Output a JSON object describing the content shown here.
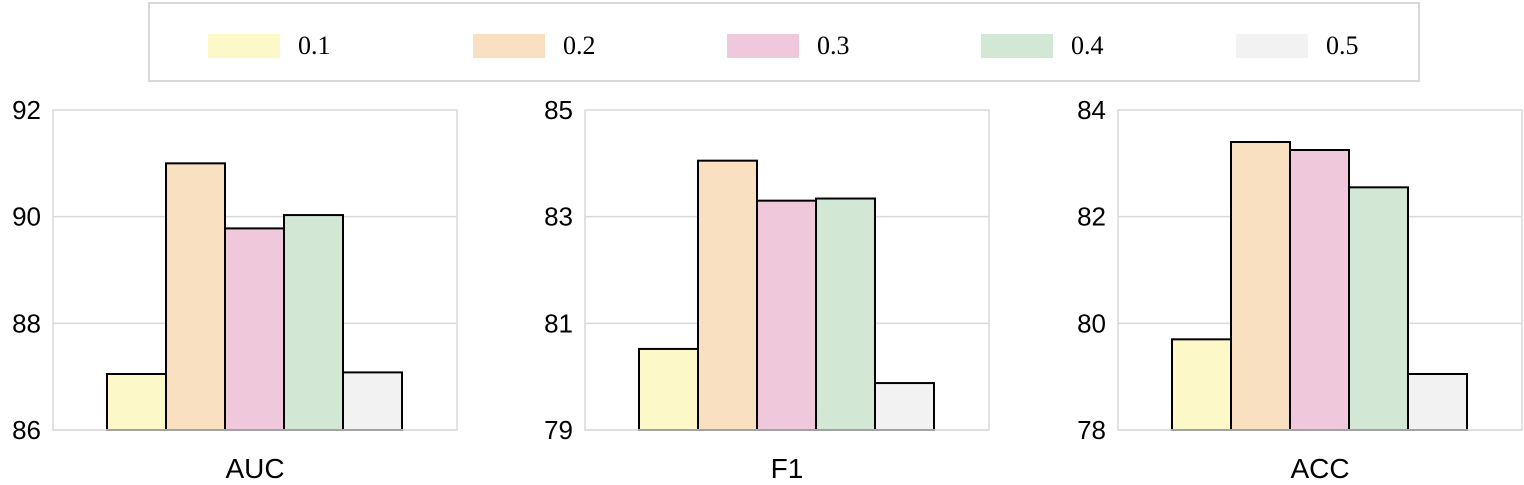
{
  "legend": {
    "items": [
      {
        "label": "0.1",
        "color": "#fcf8c8"
      },
      {
        "label": "0.2",
        "color": "#f8e0c0"
      },
      {
        "label": "0.3",
        "color": "#f0c8dc"
      },
      {
        "label": "0.4",
        "color": "#d2e8d4"
      },
      {
        "label": "0.5",
        "color": "#f2f2f2"
      }
    ]
  },
  "chart_data": [
    {
      "type": "bar",
      "title": "",
      "xlabel": "AUC",
      "ylabel": "",
      "categories": [
        "0.1",
        "0.2",
        "0.3",
        "0.4",
        "0.5"
      ],
      "values": [
        87.05,
        91.0,
        89.78,
        90.03,
        87.08
      ],
      "ylim": [
        86,
        92
      ],
      "yticks": [
        "86",
        "88",
        "90",
        "92"
      ],
      "grid": true
    },
    {
      "type": "bar",
      "title": "",
      "xlabel": "F1",
      "ylabel": "",
      "categories": [
        "0.1",
        "0.2",
        "0.3",
        "0.4",
        "0.5"
      ],
      "values": [
        80.52,
        84.05,
        83.3,
        83.34,
        79.88
      ],
      "ylim": [
        79,
        85
      ],
      "yticks": [
        "79",
        "81",
        "83",
        "85"
      ],
      "grid": true
    },
    {
      "type": "bar",
      "title": "",
      "xlabel": "ACC",
      "ylabel": "",
      "categories": [
        "0.1",
        "0.2",
        "0.3",
        "0.4",
        "0.5"
      ],
      "values": [
        79.7,
        83.4,
        83.25,
        82.55,
        79.05
      ],
      "ylim": [
        78,
        84
      ],
      "yticks": [
        "78",
        "80",
        "82",
        "84"
      ],
      "grid": true
    }
  ]
}
